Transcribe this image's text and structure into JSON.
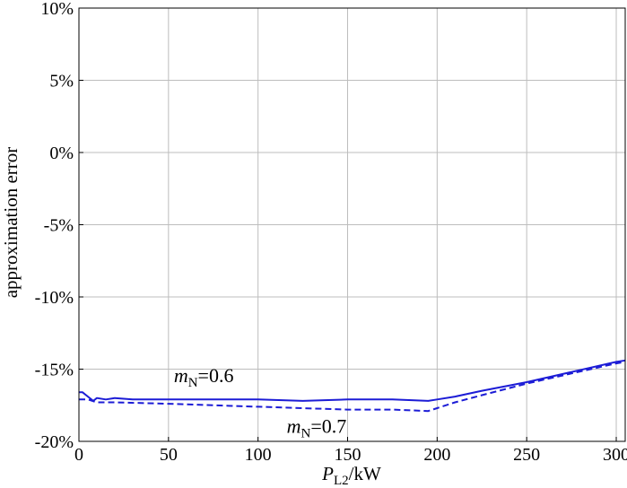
{
  "chart_data": {
    "type": "line",
    "xlabel": {
      "italic": "P",
      "sub": "L2",
      "rest": "/kW"
    },
    "ylabel": "approximation error",
    "xlim": [
      0,
      305
    ],
    "ylim": [
      -20,
      10
    ],
    "xticks": [
      0,
      50,
      100,
      150,
      200,
      250,
      300
    ],
    "xtick_labels": [
      "0",
      "50",
      "100",
      "150",
      "200",
      "250",
      "300"
    ],
    "yticks": [
      -20,
      -15,
      -10,
      -5,
      0,
      5,
      10
    ],
    "ytick_labels": [
      "-20%",
      "-15%",
      "-10%",
      "-5%",
      "0%",
      "5%",
      "10%"
    ],
    "grid": true,
    "series": [
      {
        "name": "mN=0.6",
        "style": "solid",
        "color": "#1c1cd6",
        "x": [
          0,
          2,
          5,
          8,
          10,
          15,
          20,
          30,
          50,
          75,
          100,
          125,
          150,
          175,
          195,
          200,
          210,
          225,
          250,
          275,
          300,
          305
        ],
        "y": [
          -16.6,
          -16.6,
          -16.9,
          -17.2,
          -17.0,
          -17.1,
          -17.0,
          -17.1,
          -17.1,
          -17.1,
          -17.1,
          -17.2,
          -17.1,
          -17.1,
          -17.2,
          -17.1,
          -16.9,
          -16.5,
          -15.9,
          -15.2,
          -14.5,
          -14.4
        ]
      },
      {
        "name": "mN=0.7",
        "style": "dashed",
        "color": "#1c1cd6",
        "x": [
          0,
          5,
          10,
          20,
          50,
          75,
          100,
          125,
          150,
          175,
          195,
          200,
          210,
          225,
          250,
          275,
          300,
          305
        ],
        "y": [
          -17.1,
          -17.1,
          -17.3,
          -17.3,
          -17.4,
          -17.5,
          -17.6,
          -17.7,
          -17.8,
          -17.8,
          -17.9,
          -17.7,
          -17.3,
          -16.8,
          -16.0,
          -15.3,
          -14.6,
          -14.5
        ]
      }
    ],
    "annotations": [
      {
        "italic": "m",
        "sub": "N",
        "rest": "=0.6",
        "at_x": 53,
        "at_y": -15.9
      },
      {
        "italic": "m",
        "sub": "N",
        "rest": "=0.7",
        "at_x": 116,
        "at_y": -19.4
      }
    ]
  }
}
